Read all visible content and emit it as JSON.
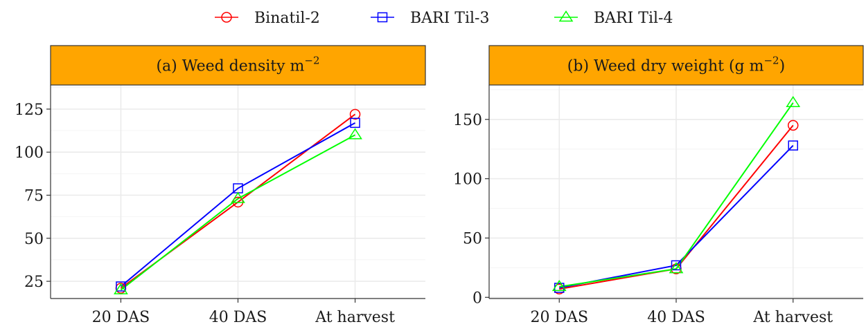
{
  "legend": {
    "position": "top",
    "items": [
      {
        "label": "Binatil-2",
        "color": "#ff0000",
        "marker": "circle"
      },
      {
        "label": "BARI Til-3",
        "color": "#0000ff",
        "marker": "square"
      },
      {
        "label": "BARI Til-4",
        "color": "#00ff00",
        "marker": "triangle"
      }
    ]
  },
  "strip_color": "#ffa500",
  "chart_data": [
    {
      "type": "line",
      "title": "(a) Weed density m",
      "title_sup": "−2",
      "title_tail": "",
      "categories": [
        "20 DAS",
        "40 DAS",
        "At harvest"
      ],
      "ylim": [
        15,
        139
      ],
      "yticks": [
        25,
        50,
        75,
        100,
        125
      ],
      "grid": true,
      "series": [
        {
          "name": "Binatil-2",
          "values": [
            21,
            71,
            122
          ]
        },
        {
          "name": "BARI Til-3",
          "values": [
            22,
            79,
            117
          ]
        },
        {
          "name": "BARI Til-4",
          "values": [
            20,
            73,
            110
          ]
        }
      ]
    },
    {
      "type": "line",
      "title": "(b) Weed dry weight (g m",
      "title_sup": "−2",
      "title_tail": ")",
      "categories": [
        "20 DAS",
        "40 DAS",
        "At harvest"
      ],
      "ylim": [
        -1,
        179
      ],
      "yticks": [
        0,
        50,
        100,
        150
      ],
      "grid": true,
      "series": [
        {
          "name": "Binatil-2",
          "values": [
            7,
            24,
            145
          ]
        },
        {
          "name": "BARI Til-3",
          "values": [
            8,
            27,
            128
          ]
        },
        {
          "name": "BARI Til-4",
          "values": [
            9,
            24,
            164
          ]
        }
      ]
    }
  ]
}
